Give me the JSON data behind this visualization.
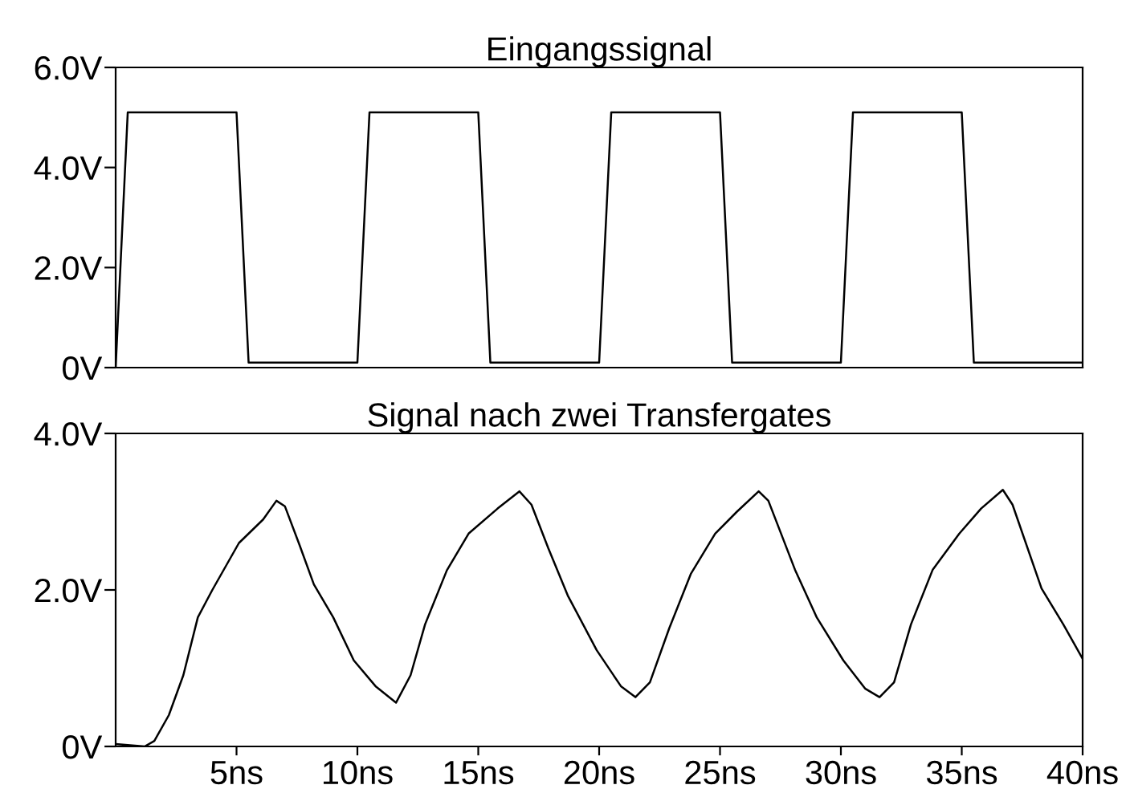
{
  "chart_data": [
    {
      "type": "line",
      "title": "Eingangssignal",
      "tick_labels": "y",
      "grid": false,
      "legend": false,
      "xlim": [
        0,
        40
      ],
      "ylim": [
        0,
        6
      ],
      "yticks": [
        {
          "value": 0,
          "label": "0V"
        },
        {
          "value": 2,
          "label": "2.0V"
        },
        {
          "value": 4,
          "label": "4.0V"
        },
        {
          "value": 6,
          "label": "6.0V"
        }
      ],
      "series": [
        {
          "color": "#000000",
          "x": [
            0,
            0.5,
            5.0,
            5.5,
            10.0,
            10.5,
            15.0,
            15.5,
            20.0,
            20.5,
            25.0,
            25.5,
            30.0,
            30.5,
            35.0,
            35.5,
            40.0
          ],
          "values": [
            0,
            5.1,
            5.1,
            0.1,
            0.1,
            5.1,
            5.1,
            0.1,
            0.1,
            5.1,
            5.1,
            0.1,
            0.1,
            5.1,
            5.1,
            0.1,
            0.1
          ]
        }
      ]
    },
    {
      "type": "line",
      "title": "Signal nach zwei Transfergates",
      "grid": false,
      "legend": false,
      "xlim": [
        0,
        40
      ],
      "ylim": [
        0,
        4
      ],
      "yticks": [
        {
          "value": 0,
          "label": "0V"
        },
        {
          "value": 2,
          "label": "2.0V"
        },
        {
          "value": 4,
          "label": "4.0V"
        }
      ],
      "xticks": [
        {
          "value": 5,
          "label": "5ns"
        },
        {
          "value": 10,
          "label": "10ns"
        },
        {
          "value": 15,
          "label": "15ns"
        },
        {
          "value": 20,
          "label": "20ns"
        },
        {
          "value": 25,
          "label": "25ns"
        },
        {
          "value": 30,
          "label": "30ns"
        },
        {
          "value": 35,
          "label": "35ns"
        },
        {
          "value": 40,
          "label": "40ns"
        }
      ],
      "series": [
        {
          "color": "#000000",
          "x": [
            0,
            1.2,
            1.6,
            2.2,
            2.8,
            3.4,
            4.0,
            5.1,
            6.1,
            6.65,
            7.0,
            7.6,
            8.2,
            9.0,
            9.85,
            10.75,
            11.6,
            12.2,
            12.8,
            13.7,
            14.6,
            15.8,
            16.7,
            17.2,
            17.9,
            18.7,
            19.9,
            20.9,
            21.5,
            22.1,
            22.9,
            23.8,
            24.8,
            25.7,
            26.6,
            27.0,
            28.1,
            29.0,
            30.1,
            31.0,
            31.6,
            32.2,
            32.9,
            33.8,
            34.9,
            35.8,
            36.7,
            37.1,
            38.3,
            39.2,
            40.0
          ],
          "values": [
            0.03,
            0,
            0.07,
            0.4,
            0.91,
            1.65,
            2.0,
            2.6,
            2.9,
            3.14,
            3.07,
            2.58,
            2.07,
            1.65,
            1.1,
            0.77,
            0.56,
            0.91,
            1.56,
            2.25,
            2.72,
            3.04,
            3.26,
            3.09,
            2.53,
            1.93,
            1.23,
            0.77,
            0.63,
            0.82,
            1.51,
            2.21,
            2.72,
            3.0,
            3.26,
            3.14,
            2.26,
            1.65,
            1.1,
            0.74,
            0.63,
            0.82,
            1.56,
            2.26,
            2.72,
            3.04,
            3.28,
            3.09,
            2.02,
            1.56,
            1.12
          ]
        }
      ]
    }
  ]
}
